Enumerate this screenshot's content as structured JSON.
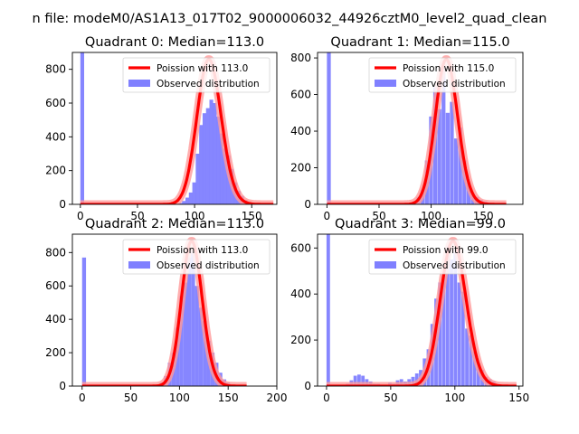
{
  "figure": {
    "suptitle": "n file: modeM0/AS1A13_017T02_9000006032_44926cztM0_level2_quad_clean"
  },
  "colors": {
    "poisson": "#ff0000",
    "poisson_halo": "#ff9a9a",
    "observed": "#8080ff"
  },
  "chart_data": [
    {
      "type": "bar",
      "title": "Quadrant 0: Median=113.0",
      "xlabel": "",
      "ylabel": "",
      "xlim": [
        -7,
        172
      ],
      "ylim": [
        0,
        900
      ],
      "xticks": [
        0,
        50,
        100,
        150
      ],
      "yticks": [
        0,
        200,
        400,
        600,
        800
      ],
      "legend": {
        "placement": "top-right",
        "entries": [
          "Poission with 113.0",
          "Observed distribution"
        ]
      },
      "poisson_mean": 113.0,
      "hist": {
        "bin_width": 3.3,
        "left_edges": [
          0,
          83,
          86,
          89,
          92,
          95,
          98,
          101,
          104,
          107,
          110,
          113,
          116,
          119,
          122,
          125,
          128,
          131,
          134,
          137,
          140,
          143,
          146,
          149,
          152,
          155,
          158
        ],
        "counts": [
          900,
          2,
          8,
          20,
          40,
          70,
          130,
          300,
          470,
          540,
          570,
          620,
          600,
          520,
          420,
          330,
          290,
          210,
          130,
          80,
          50,
          25,
          15,
          8,
          5,
          3,
          1
        ]
      }
    },
    {
      "type": "bar",
      "title": "Quadrant 1: Median=115.0",
      "xlabel": "",
      "ylabel": "",
      "xlim": [
        -9,
        188
      ],
      "ylim": [
        0,
        830
      ],
      "xticks": [
        0,
        50,
        100,
        150
      ],
      "yticks": [
        0,
        200,
        400,
        600,
        800
      ],
      "legend": {
        "placement": "top-right",
        "entries": [
          "Poission with 115.0",
          "Observed distribution"
        ]
      },
      "poisson_mean": 115.0,
      "hist": {
        "bin_width": 3.7,
        "left_edges": [
          0,
          35,
          70,
          78,
          82,
          86,
          90,
          94,
          98,
          102,
          106,
          110,
          114,
          118,
          122,
          126,
          130,
          134,
          138,
          142,
          146,
          150,
          154,
          158,
          162
        ],
        "counts": [
          830,
          5,
          5,
          8,
          15,
          40,
          80,
          240,
          480,
          640,
          520,
          760,
          500,
          560,
          360,
          420,
          240,
          120,
          60,
          40,
          25,
          15,
          10,
          5,
          3
        ]
      }
    },
    {
      "type": "bar",
      "title": "Quadrant 2: Median=113.0",
      "xlabel": "",
      "ylabel": "",
      "xlim": [
        -10,
        200
      ],
      "ylim": [
        0,
        910
      ],
      "xticks": [
        0,
        50,
        100,
        150,
        200
      ],
      "yticks": [
        0,
        200,
        400,
        600,
        800
      ],
      "legend": {
        "placement": "top-right",
        "entries": [
          "Poission with 113.0",
          "Observed distribution"
        ]
      },
      "poisson_mean": 113.0,
      "hist": {
        "bin_width": 4.0,
        "left_edges": [
          0,
          76,
          80,
          84,
          88,
          92,
          96,
          100,
          104,
          108,
          112,
          116,
          120,
          124,
          128,
          132,
          136,
          140,
          144,
          148,
          152,
          156
        ],
        "counts": [
          770,
          5,
          20,
          60,
          140,
          200,
          350,
          540,
          620,
          770,
          810,
          600,
          470,
          390,
          270,
          200,
          140,
          80,
          40,
          20,
          10,
          5
        ]
      }
    },
    {
      "type": "bar",
      "title": "Quadrant 3: Median=99.0",
      "xlabel": "",
      "ylabel": "",
      "xlim": [
        -7,
        153
      ],
      "ylim": [
        0,
        660
      ],
      "xticks": [
        0,
        50,
        100,
        150
      ],
      "yticks": [
        0,
        200,
        400,
        600
      ],
      "legend": {
        "placement": "top-right",
        "entries": [
          "Poission with 99.0",
          "Observed distribution"
        ]
      },
      "poisson_mean": 99.0,
      "hist": {
        "bin_width": 2.7,
        "left_edges": [
          0,
          15,
          18,
          21,
          24,
          27,
          30,
          33,
          36,
          39,
          45,
          48,
          51,
          54,
          57,
          60,
          63,
          66,
          69,
          72,
          75,
          78,
          81,
          84,
          87,
          90,
          93,
          96,
          99,
          102,
          105,
          108,
          111,
          114,
          117,
          120,
          123,
          126,
          129,
          132,
          135,
          138
        ],
        "counts": [
          660,
          10,
          25,
          45,
          50,
          45,
          30,
          20,
          10,
          10,
          5,
          15,
          10,
          25,
          30,
          20,
          30,
          40,
          55,
          70,
          120,
          160,
          270,
          380,
          450,
          480,
          610,
          550,
          600,
          450,
          410,
          250,
          220,
          150,
          100,
          70,
          40,
          30,
          20,
          10,
          5,
          3
        ]
      }
    }
  ]
}
